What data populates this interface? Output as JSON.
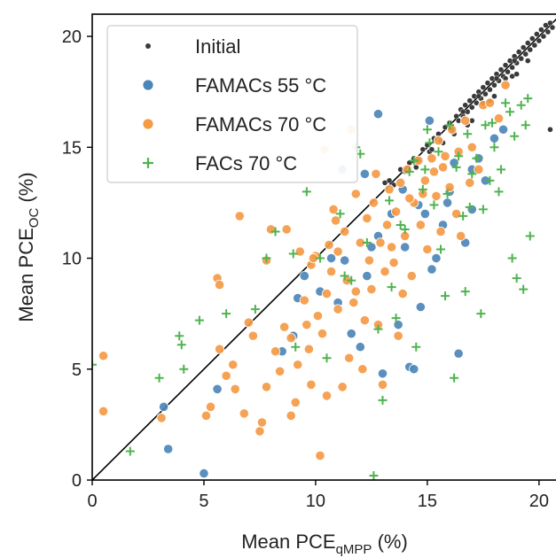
{
  "chart_data": {
    "type": "scatter",
    "xlabel": {
      "main": "Mean PCE",
      "sub": "qMPP",
      "unit": " (%)"
    },
    "ylabel": {
      "main": "Mean PCE",
      "sub": "OC",
      "unit": " (%)"
    },
    "xlim": [
      0,
      20.8
    ],
    "ylim": [
      0,
      21
    ],
    "xticks": [
      0,
      5,
      10,
      15,
      20
    ],
    "yticks": [
      0,
      5,
      10,
      15,
      20
    ],
    "reference_line": {
      "from": [
        0,
        0
      ],
      "to": [
        21,
        21
      ],
      "color": "#000000"
    },
    "legend_position": "top-left",
    "series": [
      {
        "name": "Initial",
        "marker": "dot",
        "color": "#3a3a3a",
        "points": [
          [
            13.1,
            13.4
          ],
          [
            13.3,
            13.5
          ],
          [
            13.5,
            13.3
          ],
          [
            13.8,
            14.0
          ],
          [
            14.0,
            13.9
          ],
          [
            14.2,
            14.3
          ],
          [
            14.4,
            14.5
          ],
          [
            14.6,
            14.4
          ],
          [
            14.8,
            14.9
          ],
          [
            15.0,
            15.1
          ],
          [
            15.1,
            14.8
          ],
          [
            15.3,
            15.4
          ],
          [
            15.5,
            15.6
          ],
          [
            15.6,
            15.3
          ],
          [
            15.8,
            15.9
          ],
          [
            16.0,
            16.1
          ],
          [
            16.1,
            15.8
          ],
          [
            16.3,
            16.4
          ],
          [
            16.4,
            16.2
          ],
          [
            16.5,
            16.7
          ],
          [
            16.6,
            16.4
          ],
          [
            16.7,
            16.9
          ],
          [
            16.8,
            16.6
          ],
          [
            16.9,
            17.1
          ],
          [
            17.0,
            16.8
          ],
          [
            17.1,
            17.3
          ],
          [
            17.2,
            17.0
          ],
          [
            17.3,
            17.5
          ],
          [
            17.4,
            17.2
          ],
          [
            17.5,
            17.7
          ],
          [
            17.6,
            17.4
          ],
          [
            17.7,
            17.9
          ],
          [
            17.8,
            17.6
          ],
          [
            17.9,
            18.1
          ],
          [
            18.0,
            17.8
          ],
          [
            18.1,
            18.3
          ],
          [
            18.2,
            18.0
          ],
          [
            18.3,
            18.5
          ],
          [
            18.4,
            18.2
          ],
          [
            18.5,
            18.7
          ],
          [
            18.6,
            18.4
          ],
          [
            18.7,
            18.9
          ],
          [
            18.8,
            18.6
          ],
          [
            18.9,
            19.1
          ],
          [
            19.0,
            18.8
          ],
          [
            19.1,
            19.3
          ],
          [
            19.2,
            19.0
          ],
          [
            19.3,
            19.5
          ],
          [
            19.4,
            19.2
          ],
          [
            19.5,
            19.7
          ],
          [
            19.6,
            19.4
          ],
          [
            19.7,
            19.9
          ],
          [
            19.8,
            19.6
          ],
          [
            19.9,
            20.1
          ],
          [
            20.0,
            19.8
          ],
          [
            20.1,
            20.3
          ],
          [
            20.2,
            20.0
          ],
          [
            20.3,
            20.5
          ],
          [
            20.4,
            20.2
          ],
          [
            20.5,
            20.6
          ],
          [
            20.6,
            20.4
          ],
          [
            17.0,
            16.2
          ],
          [
            17.5,
            17.0
          ],
          [
            18.0,
            17.3
          ],
          [
            18.5,
            18.1
          ],
          [
            16.8,
            16.0
          ],
          [
            17.8,
            17.1
          ],
          [
            18.8,
            18.2
          ],
          [
            19.0,
            18.3
          ],
          [
            16.2,
            15.6
          ],
          [
            15.7,
            15.2
          ],
          [
            19.5,
            18.9
          ],
          [
            20.5,
            15.8
          ],
          [
            14.5,
            14.1
          ],
          [
            15.2,
            14.9
          ],
          [
            16.6,
            16.6
          ],
          [
            17.3,
            17.3
          ],
          [
            18.1,
            18.1
          ],
          [
            18.9,
            18.9
          ]
        ]
      },
      {
        "name": "FAMACs 55 °C",
        "marker": "circle",
        "color": "#4c86b8",
        "points": [
          [
            3.2,
            3.3
          ],
          [
            3.4,
            1.4
          ],
          [
            5.0,
            0.3
          ],
          [
            5.6,
            4.1
          ],
          [
            8.5,
            5.8
          ],
          [
            9.0,
            6.5
          ],
          [
            9.5,
            9.2
          ],
          [
            10.2,
            8.5
          ],
          [
            11.0,
            8.0
          ],
          [
            11.3,
            9.9
          ],
          [
            11.6,
            6.6
          ],
          [
            12.0,
            6.0
          ],
          [
            12.3,
            9.2
          ],
          [
            12.5,
            10.5
          ],
          [
            12.8,
            11.0
          ],
          [
            13.0,
            4.8
          ],
          [
            13.4,
            12.0
          ],
          [
            13.7,
            7.0
          ],
          [
            14.0,
            10.5
          ],
          [
            14.2,
            5.1
          ],
          [
            14.4,
            5.0
          ],
          [
            14.6,
            12.4
          ],
          [
            14.9,
            12.0
          ],
          [
            15.2,
            9.5
          ],
          [
            15.4,
            10.0
          ],
          [
            15.7,
            11.5
          ],
          [
            16.0,
            13.0
          ],
          [
            16.4,
            5.7
          ],
          [
            16.7,
            10.7
          ],
          [
            17.0,
            14.0
          ],
          [
            17.3,
            14.5
          ],
          [
            17.6,
            13.5
          ],
          [
            18.0,
            15.4
          ],
          [
            18.4,
            15.8
          ],
          [
            12.2,
            13.8
          ],
          [
            12.8,
            16.5
          ],
          [
            13.9,
            13.1
          ],
          [
            15.1,
            16.2
          ],
          [
            16.2,
            14.3
          ],
          [
            17.0,
            12.2
          ],
          [
            11.2,
            14.0
          ],
          [
            10.7,
            10.0
          ],
          [
            9.2,
            8.2
          ],
          [
            14.7,
            7.8
          ],
          [
            15.9,
            12.5
          ]
        ]
      },
      {
        "name": "FAMACs 70 °C",
        "marker": "circle",
        "color": "#f59a45",
        "points": [
          [
            0.5,
            5.6
          ],
          [
            0.5,
            3.1
          ],
          [
            3.1,
            2.8
          ],
          [
            5.1,
            2.9
          ],
          [
            5.3,
            3.3
          ],
          [
            5.7,
            5.9
          ],
          [
            5.6,
            9.1
          ],
          [
            5.7,
            8.8
          ],
          [
            6.0,
            4.7
          ],
          [
            6.3,
            5.2
          ],
          [
            6.4,
            4.1
          ],
          [
            6.6,
            11.9
          ],
          [
            6.8,
            3.0
          ],
          [
            7.0,
            7.1
          ],
          [
            7.2,
            6.5
          ],
          [
            7.5,
            2.2
          ],
          [
            7.6,
            2.6
          ],
          [
            7.8,
            4.2
          ],
          [
            7.8,
            9.9
          ],
          [
            8.0,
            11.3
          ],
          [
            8.2,
            5.8
          ],
          [
            8.4,
            4.9
          ],
          [
            8.6,
            6.9
          ],
          [
            8.7,
            11.3
          ],
          [
            8.9,
            6.4
          ],
          [
            9.1,
            3.5
          ],
          [
            9.2,
            5.2
          ],
          [
            9.5,
            8.1
          ],
          [
            9.6,
            7.0
          ],
          [
            9.8,
            9.7
          ],
          [
            10.0,
            10.1
          ],
          [
            10.2,
            1.1
          ],
          [
            10.3,
            6.6
          ],
          [
            10.5,
            8.4
          ],
          [
            10.6,
            10.6
          ],
          [
            10.8,
            12.2
          ],
          [
            11.0,
            7.7
          ],
          [
            11.2,
            4.2
          ],
          [
            11.4,
            9.0
          ],
          [
            11.5,
            5.5
          ],
          [
            11.6,
            15.8
          ],
          [
            11.8,
            8.5
          ],
          [
            12.0,
            10.7
          ],
          [
            12.1,
            5.0
          ],
          [
            12.3,
            11.8
          ],
          [
            12.5,
            8.6
          ],
          [
            12.6,
            12.5
          ],
          [
            12.8,
            7.0
          ],
          [
            13.0,
            4.3
          ],
          [
            13.1,
            9.4
          ],
          [
            13.3,
            13.1
          ],
          [
            13.4,
            10.5
          ],
          [
            13.6,
            12.1
          ],
          [
            13.7,
            6.5
          ],
          [
            13.8,
            13.4
          ],
          [
            14.0,
            11.0
          ],
          [
            14.1,
            14.0
          ],
          [
            14.3,
            9.2
          ],
          [
            14.4,
            12.5
          ],
          [
            14.6,
            14.4
          ],
          [
            14.7,
            11.5
          ],
          [
            14.9,
            13.5
          ],
          [
            15.0,
            10.4
          ],
          [
            15.2,
            14.5
          ],
          [
            15.4,
            12.8
          ],
          [
            15.5,
            15.3
          ],
          [
            15.6,
            11.2
          ],
          [
            15.8,
            14.6
          ],
          [
            16.0,
            13.2
          ],
          [
            16.1,
            15.8
          ],
          [
            16.3,
            12.0
          ],
          [
            16.4,
            14.8
          ],
          [
            16.5,
            11.0
          ],
          [
            16.7,
            16.2
          ],
          [
            16.9,
            13.4
          ],
          [
            17.0,
            15.0
          ],
          [
            17.3,
            14.0
          ],
          [
            17.5,
            16.9
          ],
          [
            17.8,
            17.0
          ],
          [
            18.2,
            16.3
          ],
          [
            18.5,
            17.8
          ],
          [
            10.4,
            14.9
          ],
          [
            9.9,
            10.0
          ],
          [
            9.3,
            10.3
          ],
          [
            10.9,
            11.7
          ],
          [
            11.7,
            8.0
          ],
          [
            12.4,
            9.9
          ],
          [
            13.2,
            11.5
          ],
          [
            14.2,
            12.7
          ],
          [
            15.3,
            13.9
          ],
          [
            11.0,
            10.3
          ],
          [
            9.7,
            5.9
          ],
          [
            10.1,
            7.4
          ],
          [
            10.7,
            9.4
          ],
          [
            11.3,
            11.2
          ],
          [
            12.9,
            10.7
          ],
          [
            13.9,
            8.4
          ],
          [
            12.2,
            7.2
          ],
          [
            8.9,
            2.9
          ],
          [
            9.8,
            4.3
          ],
          [
            10.5,
            3.8
          ],
          [
            11.8,
            12.9
          ],
          [
            12.7,
            13.8
          ],
          [
            13.5,
            9.8
          ],
          [
            14.8,
            12.9
          ],
          [
            15.7,
            14.1
          ]
        ]
      },
      {
        "name": "FACs 70 °C",
        "marker": "plus",
        "color": "#4fb34f",
        "points": [
          [
            0,
            5.2
          ],
          [
            1.7,
            1.3
          ],
          [
            3.0,
            4.6
          ],
          [
            3.9,
            6.5
          ],
          [
            4.0,
            6.1
          ],
          [
            4.1,
            5.0
          ],
          [
            4.8,
            7.2
          ],
          [
            6.0,
            7.5
          ],
          [
            7.3,
            7.7
          ],
          [
            7.8,
            10.0
          ],
          [
            8.2,
            11.2
          ],
          [
            9.0,
            10.2
          ],
          [
            9.1,
            6.0
          ],
          [
            9.6,
            13.0
          ],
          [
            10.2,
            10.0
          ],
          [
            10.5,
            5.5
          ],
          [
            11.1,
            12.0
          ],
          [
            11.6,
            9.0
          ],
          [
            11.8,
            15.0
          ],
          [
            12.0,
            14.7
          ],
          [
            12.6,
            0.2
          ],
          [
            12.8,
            6.8
          ],
          [
            13.0,
            3.6
          ],
          [
            13.4,
            8.7
          ],
          [
            13.8,
            11.5
          ],
          [
            14.2,
            13.9
          ],
          [
            14.5,
            6.0
          ],
          [
            14.9,
            14.0
          ],
          [
            15.0,
            15.8
          ],
          [
            15.3,
            12.4
          ],
          [
            15.6,
            10.4
          ],
          [
            15.8,
            8.3
          ],
          [
            16.0,
            16.0
          ],
          [
            16.2,
            4.6
          ],
          [
            16.4,
            14.6
          ],
          [
            16.7,
            8.5
          ],
          [
            16.9,
            12.3
          ],
          [
            17.2,
            14.5
          ],
          [
            17.4,
            7.5
          ],
          [
            17.6,
            16.0
          ],
          [
            17.8,
            13.5
          ],
          [
            18.0,
            15.0
          ],
          [
            18.3,
            14.0
          ],
          [
            18.5,
            17.0
          ],
          [
            18.8,
            10.0
          ],
          [
            19.0,
            9.1
          ],
          [
            19.2,
            16.9
          ],
          [
            19.5,
            17.2
          ],
          [
            19.6,
            11.0
          ],
          [
            19.4,
            16.0
          ],
          [
            19.3,
            8.6
          ],
          [
            18.9,
            15.5
          ],
          [
            18.2,
            13.0
          ],
          [
            17.0,
            13.8
          ],
          [
            16.6,
            11.9
          ],
          [
            15.9,
            12.9
          ],
          [
            15.5,
            14.8
          ],
          [
            14.8,
            13.1
          ],
          [
            14.0,
            11.3
          ],
          [
            13.3,
            12.6
          ],
          [
            12.3,
            10.7
          ],
          [
            11.3,
            9.2
          ],
          [
            16.8,
            15.6
          ],
          [
            17.9,
            16.1
          ],
          [
            18.7,
            16.6
          ],
          [
            14.4,
            14.4
          ],
          [
            13.6,
            7.3
          ],
          [
            15.1,
            15.2
          ],
          [
            16.3,
            14.1
          ],
          [
            17.5,
            12.2
          ]
        ]
      }
    ]
  }
}
